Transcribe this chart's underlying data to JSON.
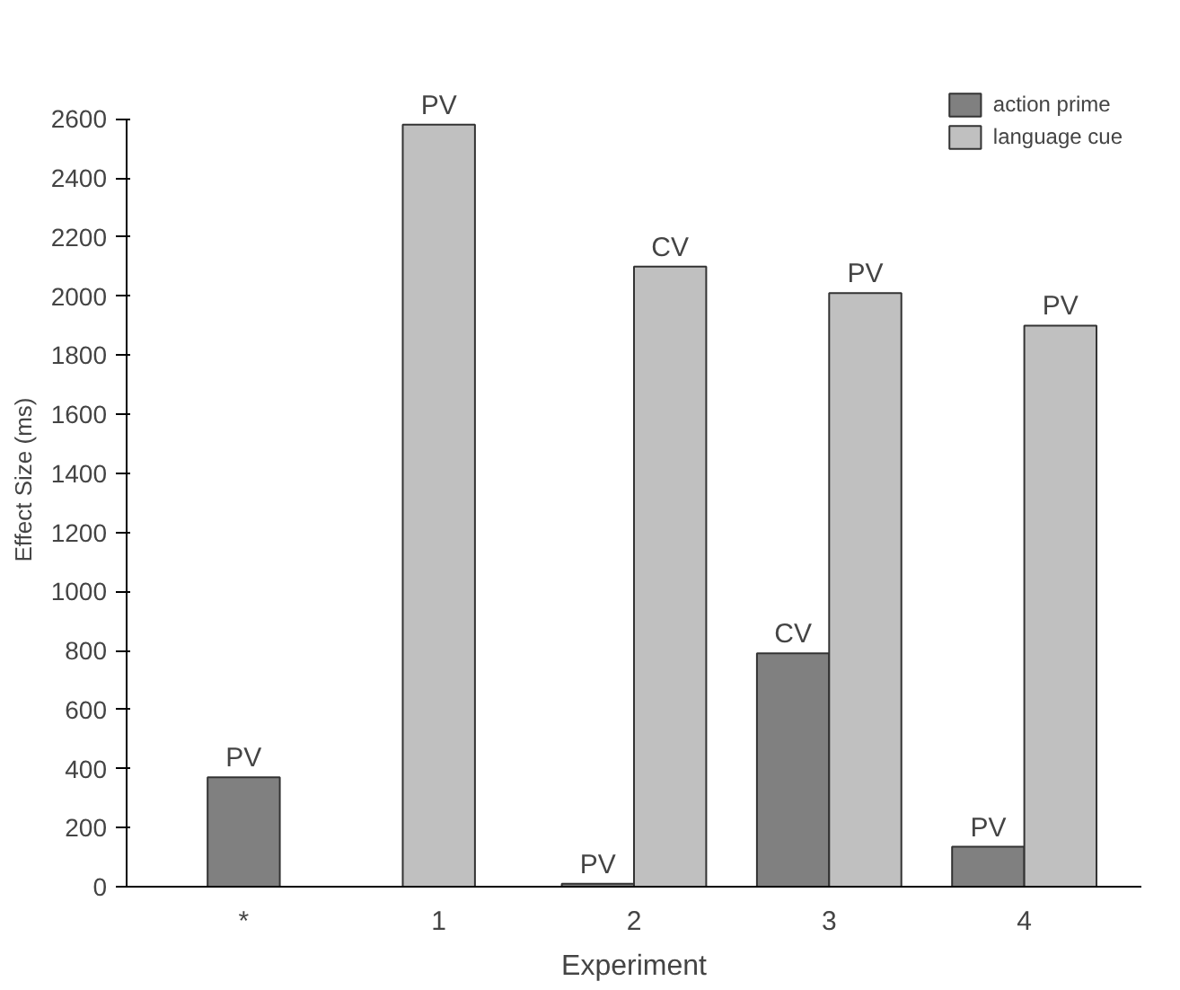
{
  "chart_data": {
    "type": "bar",
    "xlabel": "Experiment",
    "ylabel": "Effect Size (ms)",
    "categories": [
      "*",
      "1",
      "2",
      "3",
      "4"
    ],
    "series": [
      {
        "name": "action prime",
        "color": "#808080",
        "values": [
          370,
          null,
          10,
          790,
          135
        ],
        "value_labels": [
          "PV",
          null,
          "PV",
          "CV",
          "PV"
        ]
      },
      {
        "name": "language cue",
        "color": "#c0c0c0",
        "values": [
          null,
          2580,
          2100,
          2010,
          1900
        ],
        "value_labels": [
          null,
          "PV",
          "CV",
          "PV",
          "PV"
        ]
      }
    ],
    "ylim": [
      0,
      2600
    ],
    "yticks": [
      0,
      200,
      400,
      600,
      800,
      1000,
      1200,
      1400,
      1600,
      1800,
      2000,
      2200,
      2400,
      2600
    ],
    "grid": false,
    "legend": "top right"
  }
}
